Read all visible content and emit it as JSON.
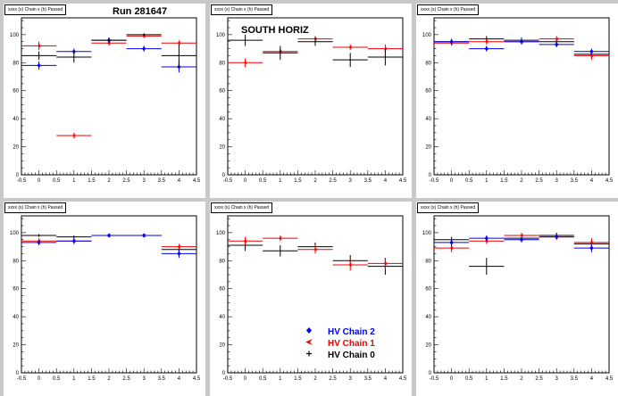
{
  "canvas": {
    "background": "#c8c8c8",
    "pad_background": "#ffffff"
  },
  "legend": {
    "items": [
      {
        "label": "HV Chain 2",
        "color": "#0000ee",
        "marker": "diamond"
      },
      {
        "label": "HV Chain 1",
        "color": "#ee0000",
        "marker": "arrow"
      },
      {
        "label": "HV Chain 0",
        "color": "#000000",
        "marker": "cross"
      }
    ]
  },
  "chart_data": [
    {
      "type": "scatter",
      "title": "Run 281647",
      "hist_title": "xxxx (s) Chain x (h) Passed",
      "xlim": [
        -0.5,
        4.5
      ],
      "ylim": [
        0,
        112
      ],
      "x_ticks": [
        "-0.5",
        "0",
        "0.5",
        "1",
        "1.5",
        "2",
        "2.5",
        "3",
        "3.5",
        "4",
        "4.5"
      ],
      "y_ticks": [
        "0",
        "20",
        "40",
        "60",
        "80",
        "100"
      ],
      "series": [
        {
          "color": "#ee0000",
          "points": [
            [
              0,
              92,
              3
            ],
            [
              1,
              28,
              2
            ],
            [
              2,
              94,
              2
            ],
            [
              3,
              99,
              1.5
            ],
            [
              4,
              94,
              2
            ]
          ]
        },
        {
          "color": "#0000ee",
          "points": [
            [
              0,
              78,
              3
            ],
            [
              1,
              88,
              2
            ],
            [
              2,
              96,
              2
            ],
            [
              3,
              90,
              2
            ],
            [
              4,
              77,
              4
            ]
          ]
        },
        {
          "color": "#000000",
          "points": [
            [
              0,
              85,
              3
            ],
            [
              1,
              84,
              4
            ],
            [
              2,
              96,
              2
            ],
            [
              3,
              100,
              1
            ],
            [
              4,
              85,
              8
            ]
          ]
        }
      ]
    },
    {
      "type": "scatter",
      "title": "SOUTH HORIZ",
      "hist_title": "xxxx (s) Chain x (h) Passed",
      "xlim": [
        -0.5,
        4.5
      ],
      "ylim": [
        0,
        112
      ],
      "x_ticks": [
        "-0.5",
        "0",
        "0.5",
        "1",
        "1.5",
        "2",
        "2.5",
        "3",
        "3.5",
        "4",
        "4.5"
      ],
      "y_ticks": [
        "0",
        "20",
        "40",
        "60",
        "80",
        "100"
      ],
      "series": [
        {
          "color": "#ee0000",
          "points": [
            [
              0,
              80,
              3
            ],
            [
              1,
              88,
              2
            ],
            [
              2,
              97,
              2
            ],
            [
              3,
              91,
              2
            ],
            [
              4,
              90,
              3
            ]
          ]
        },
        {
          "color": "#000000",
          "points": [
            [
              0,
              96,
              4
            ],
            [
              1,
              87,
              5
            ],
            [
              2,
              95,
              3
            ],
            [
              3,
              82,
              5
            ],
            [
              4,
              84,
              6
            ]
          ]
        }
      ]
    },
    {
      "type": "scatter",
      "title": "",
      "hist_title": "xxxx (s) Chain x (h) Passed",
      "xlim": [
        -0.5,
        4.5
      ],
      "ylim": [
        0,
        112
      ],
      "x_ticks": [
        "-0.5",
        "0",
        "0.5",
        "1",
        "1.5",
        "2",
        "2.5",
        "3",
        "3.5",
        "4",
        "4.5"
      ],
      "y_ticks": [
        "0",
        "20",
        "40",
        "60",
        "80",
        "100"
      ],
      "series": [
        {
          "color": "#000000",
          "points": [
            [
              0,
              95,
              2
            ],
            [
              1,
              97,
              2
            ],
            [
              2,
              96,
              2
            ],
            [
              3,
              95,
              2
            ],
            [
              4,
              86,
              3
            ]
          ]
        },
        {
          "color": "#ee0000",
          "points": [
            [
              0,
              94,
              2
            ],
            [
              1,
              95,
              2
            ],
            [
              2,
              95,
              2
            ],
            [
              3,
              97,
              2
            ],
            [
              4,
              85,
              3
            ]
          ]
        },
        {
          "color": "#0000ee",
          "points": [
            [
              0,
              95,
              2
            ],
            [
              1,
              90,
              2
            ],
            [
              2,
              95,
              2
            ],
            [
              3,
              93,
              2
            ],
            [
              4,
              88,
              2
            ]
          ]
        }
      ]
    },
    {
      "type": "scatter",
      "title": "",
      "hist_title": "xxxx (s) Chain x (h) Passed",
      "xlim": [
        -0.5,
        4.5
      ],
      "ylim": [
        0,
        112
      ],
      "x_ticks": [
        "-0.5",
        "0",
        "0.5",
        "1",
        "1.5",
        "2",
        "2.5",
        "3",
        "3.5",
        "4",
        "4.5"
      ],
      "y_ticks": [
        "0",
        "20",
        "40",
        "60",
        "80",
        "100"
      ],
      "series": [
        {
          "color": "#000000",
          "points": [
            [
              0,
              98,
              1
            ],
            [
              1,
              97,
              1
            ],
            [
              2,
              98,
              1
            ],
            [
              3,
              98,
              1
            ],
            [
              4,
              88,
              2
            ]
          ]
        },
        {
          "color": "#ee0000",
          "points": [
            [
              0,
              94,
              2
            ],
            [
              1,
              94,
              2
            ],
            [
              2,
              98,
              1
            ],
            [
              3,
              98,
              1
            ],
            [
              4,
              90,
              2
            ]
          ]
        },
        {
          "color": "#0000ee",
          "points": [
            [
              0,
              93,
              2
            ],
            [
              1,
              94,
              2
            ],
            [
              2,
              98,
              1
            ],
            [
              3,
              98,
              1
            ],
            [
              4,
              85,
              3
            ]
          ]
        }
      ]
    },
    {
      "type": "scatter",
      "title": "",
      "hist_title": "xxxx (s) Chain x (h) Passed",
      "xlim": [
        -0.5,
        4.5
      ],
      "ylim": [
        0,
        112
      ],
      "x_ticks": [
        "-0.5",
        "0",
        "0.5",
        "1",
        "1.5",
        "2",
        "2.5",
        "3",
        "3.5",
        "4",
        "4.5"
      ],
      "y_ticks": [
        "0",
        "20",
        "40",
        "60",
        "80",
        "100"
      ],
      "series": [
        {
          "color": "#000000",
          "points": [
            [
              0,
              91,
              4
            ],
            [
              1,
              87,
              4
            ],
            [
              2,
              90,
              3
            ],
            [
              3,
              80,
              4
            ],
            [
              4,
              76,
              6
            ]
          ]
        },
        {
          "color": "#ee0000",
          "points": [
            [
              0,
              94,
              3
            ],
            [
              1,
              96,
              2
            ],
            [
              2,
              88,
              3
            ],
            [
              3,
              77,
              4
            ],
            [
              4,
              78,
              4
            ]
          ]
        }
      ]
    },
    {
      "type": "scatter",
      "title": "",
      "hist_title": "xxxx (s) Chain x (h) Passed",
      "xlim": [
        -0.5,
        4.5
      ],
      "ylim": [
        0,
        112
      ],
      "x_ticks": [
        "-0.5",
        "0",
        "0.5",
        "1",
        "1.5",
        "2",
        "2.5",
        "3",
        "3.5",
        "4",
        "4.5"
      ],
      "y_ticks": [
        "0",
        "20",
        "40",
        "60",
        "80",
        "100"
      ],
      "series": [
        {
          "color": "#000000",
          "points": [
            [
              0,
              95,
              2
            ],
            [
              1,
              76,
              6
            ],
            [
              2,
              96,
              2
            ],
            [
              3,
              98,
              2
            ],
            [
              4,
              92,
              3
            ]
          ]
        },
        {
          "color": "#ee0000",
          "points": [
            [
              0,
              89,
              3
            ],
            [
              1,
              94,
              2
            ],
            [
              2,
              98,
              2
            ],
            [
              3,
              97,
              2
            ],
            [
              4,
              93,
              3
            ]
          ]
        },
        {
          "color": "#0000ee",
          "points": [
            [
              0,
              93,
              3
            ],
            [
              1,
              96,
              2
            ],
            [
              2,
              95,
              2
            ],
            [
              3,
              97,
              2
            ],
            [
              4,
              89,
              3
            ]
          ]
        }
      ]
    }
  ]
}
